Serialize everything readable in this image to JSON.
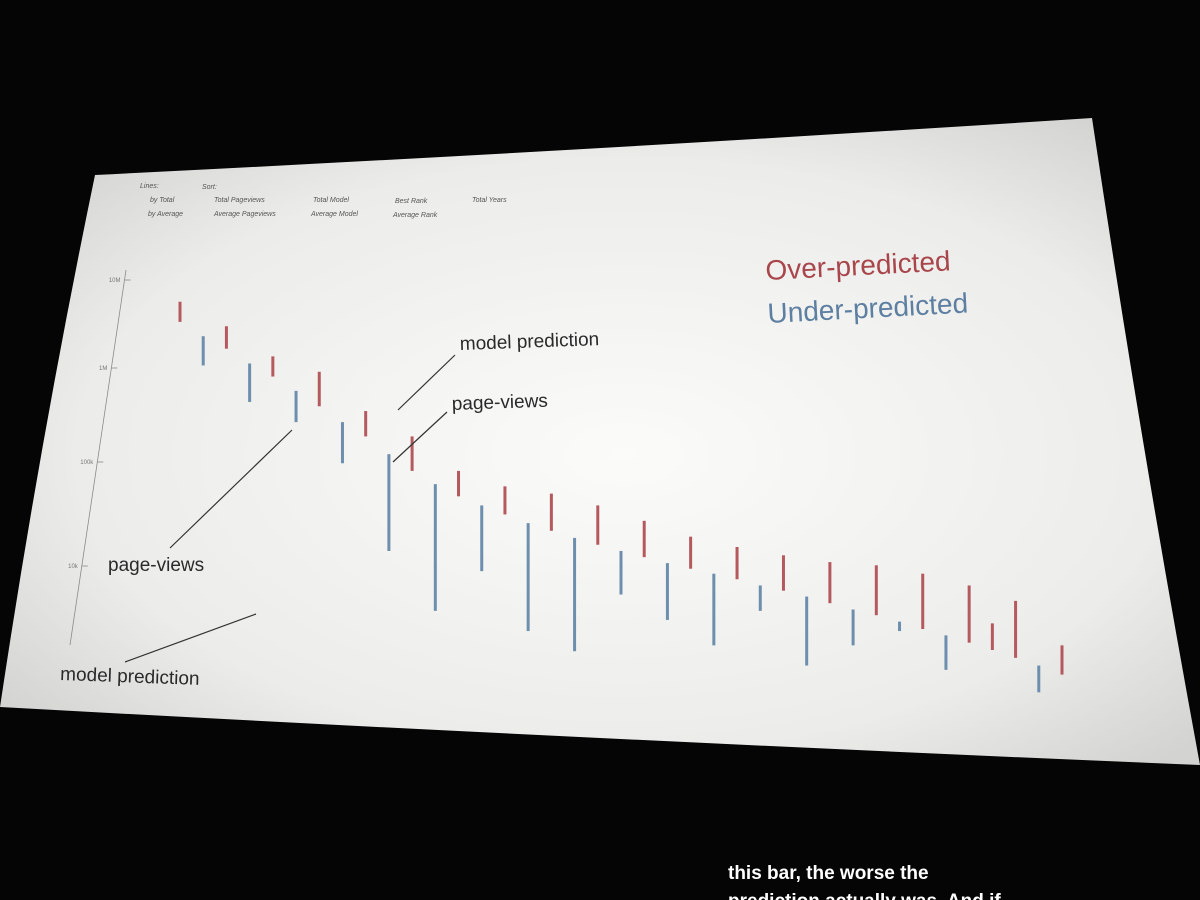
{
  "controls": {
    "lines_label": "Lines:",
    "sort_label": "Sort:",
    "lines_options": [
      "by Total",
      "by Average"
    ],
    "sort_options": [
      [
        "Total Pageviews",
        "Average Pageviews"
      ],
      [
        "Total Model",
        "Average Model"
      ],
      [
        "Best Rank",
        "Average Rank"
      ],
      [
        "Total Years"
      ]
    ]
  },
  "legend": {
    "over": "Over-predicted",
    "under": "Under-predicted"
  },
  "annotations": {
    "top_model": "model prediction",
    "top_pageviews": "page-views",
    "left_pageviews": "page-views",
    "left_model": "model prediction"
  },
  "caption": {
    "line1": "this bar, the worse the",
    "line2": "prediction actually was.  And if"
  },
  "colors": {
    "over": "#b45a5f",
    "under": "#6d8fad",
    "axis": "#8a8a8a",
    "annotation_arrow": "#333333",
    "screen": "#f4f4f1",
    "background": "#050505"
  },
  "chart_data": {
    "type": "bar",
    "yscale": "log",
    "ytick_labels": [
      "10M",
      "1M",
      "100k",
      "10k"
    ],
    "yticks": [
      10000000,
      1000000,
      100000,
      10000
    ],
    "ylim": [
      3000,
      20000000
    ],
    "series": [
      {
        "name": "Over-predicted",
        "color": "#b45a5f"
      },
      {
        "name": "Under-predicted",
        "color": "#6d8fad"
      }
    ],
    "pageviews": [
      6000000,
      4500000,
      3500000,
      2600000,
      2000000,
      1500000,
      1100000,
      800000,
      600000,
      420000,
      300000,
      230000,
      180000,
      150000,
      125000,
      105000,
      90000,
      78000,
      68000,
      60000,
      53000,
      47000,
      42000,
      38000,
      34000,
      30000,
      27000,
      24000,
      21000,
      18500,
      16500,
      14500,
      12500,
      11000,
      9500,
      8200,
      7000,
      6000,
      5000
    ],
    "model_prediction": [
      9000000,
      2500000,
      5500000,
      1200000,
      3000000,
      800000,
      2200000,
      350000,
      1000000,
      60000,
      600000,
      18000,
      300000,
      40000,
      220000,
      12000,
      190000,
      8000,
      150000,
      25000,
      110000,
      15000,
      80000,
      9000,
      65000,
      18000,
      55000,
      6000,
      48000,
      9000,
      45000,
      12000,
      38000,
      5500,
      30000,
      14000,
      22000,
      3500,
      9000
    ]
  }
}
